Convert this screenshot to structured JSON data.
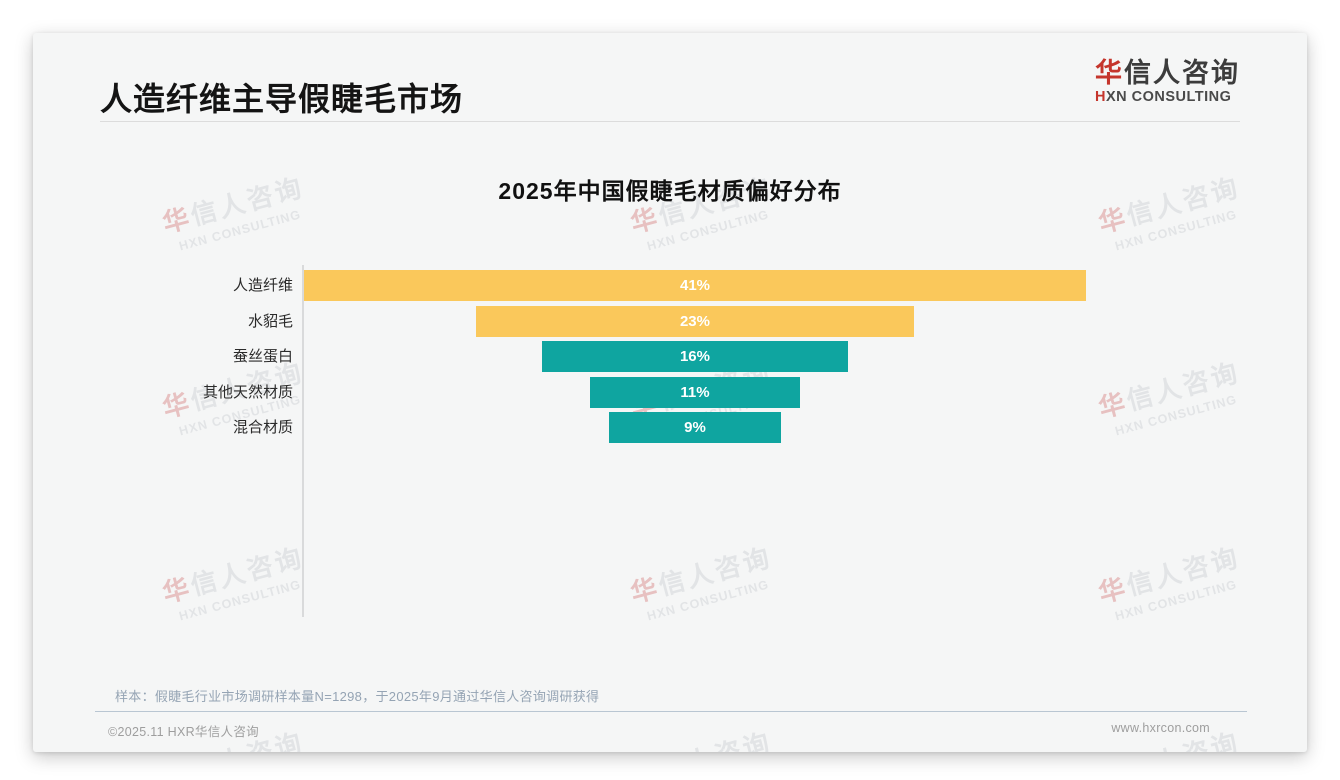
{
  "page": {
    "title": "人造纤维主导假睫毛市场",
    "logo": {
      "zh_accent": "华",
      "zh_rest": "信人咨询",
      "en_accent": "H",
      "en_rest": "XN CONSULTING"
    },
    "note": "样本：假睫毛行业市场调研样本量N=1298，于2025年9月通过华信人咨询调研获得",
    "footer": {
      "left": "©2025.11 HXR华信人咨询",
      "right": "www.hxrcon.com"
    },
    "watermark": {
      "line1_accent": "华",
      "line1_rest": "信人咨询",
      "line2": "HXN CONSULTING"
    }
  },
  "chart_data": {
    "type": "bar",
    "orientation": "horizontal-centered-funnel",
    "title": "2025年中国假睫毛材质偏好分布",
    "categories": [
      "人造纤维",
      "水貂毛",
      "蚕丝蛋白",
      "其他天然材质",
      "混合材质"
    ],
    "values": [
      41,
      23,
      16,
      11,
      9
    ],
    "value_labels": [
      "41%",
      "23%",
      "16%",
      "11%",
      "9%"
    ],
    "bar_colors": [
      "#FAC85B",
      "#FAC85B",
      "#0FA5A0",
      "#0FA5A0",
      "#0FA5A0"
    ],
    "xlim": [
      0,
      41
    ],
    "xlabel": "",
    "ylabel": "",
    "grid": "off",
    "legend": "none"
  },
  "colors": {
    "yellow": "#FAC85B",
    "teal": "#0FA5A0",
    "accent_red": "#C5352C"
  }
}
